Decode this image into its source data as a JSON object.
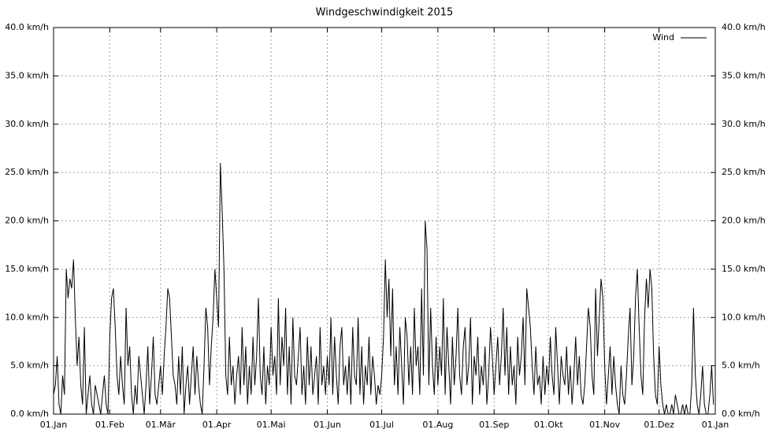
{
  "chart_data": {
    "type": "line",
    "title": "Windgeschwindigkeit 2015",
    "x": [
      0,
      1,
      2,
      3,
      4,
      5,
      6,
      7,
      8,
      9,
      10,
      11,
      12,
      13,
      14,
      15,
      16,
      17,
      18,
      19,
      20,
      21,
      22,
      23,
      24,
      25,
      26,
      27,
      28,
      29,
      30,
      31,
      32,
      33,
      34,
      35,
      36,
      37,
      38,
      39,
      40,
      41,
      42,
      43,
      44,
      45,
      46,
      47,
      48,
      49,
      50,
      51,
      52,
      53,
      54,
      55,
      56,
      57,
      58,
      59,
      60,
      61,
      62,
      63,
      64,
      65,
      66,
      67,
      68,
      69,
      70,
      71,
      72,
      73,
      74,
      75,
      76,
      77,
      78,
      79,
      80,
      81,
      82,
      83,
      84,
      85,
      86,
      87,
      88,
      89,
      90,
      91,
      92,
      93,
      94,
      95,
      96,
      97,
      98,
      99,
      100,
      101,
      102,
      103,
      104,
      105,
      106,
      107,
      108,
      109,
      110,
      111,
      112,
      113,
      114,
      115,
      116,
      117,
      118,
      119,
      120,
      121,
      122,
      123,
      124,
      125,
      126,
      127,
      128,
      129,
      130,
      131,
      132,
      133,
      134,
      135,
      136,
      137,
      138,
      139,
      140,
      141,
      142,
      143,
      144,
      145,
      146,
      147,
      148,
      149,
      150,
      151,
      152,
      153,
      154,
      155,
      156,
      157,
      158,
      159,
      160,
      161,
      162,
      163,
      164,
      165,
      166,
      167,
      168,
      169,
      170,
      171,
      172,
      173,
      174,
      175,
      176,
      177,
      178,
      179,
      180,
      181,
      182,
      183,
      184,
      185,
      186,
      187,
      188,
      189,
      190,
      191,
      192,
      193,
      194,
      195,
      196,
      197,
      198,
      199,
      200,
      201,
      202,
      203,
      204,
      205,
      206,
      207,
      208,
      209,
      210,
      211,
      212,
      213,
      214,
      215,
      216,
      217,
      218,
      219,
      220,
      221,
      222,
      223,
      224,
      225,
      226,
      227,
      228,
      229,
      230,
      231,
      232,
      233,
      234,
      235,
      236,
      237,
      238,
      239,
      240,
      241,
      242,
      243,
      244,
      245,
      246,
      247,
      248,
      249,
      250,
      251,
      252,
      253,
      254,
      255,
      256,
      257,
      258,
      259,
      260,
      261,
      262,
      263,
      264,
      265,
      266,
      267,
      268,
      269,
      270,
      271,
      272,
      273,
      274,
      275,
      276,
      277,
      278,
      279,
      280,
      281,
      282,
      283,
      284,
      285,
      286,
      287,
      288,
      289,
      290,
      291,
      292,
      293,
      294,
      295,
      296,
      297,
      298,
      299,
      300,
      301,
      302,
      303,
      304,
      305,
      306,
      307,
      308,
      309,
      310,
      311,
      312,
      313,
      314,
      315,
      316,
      317,
      318,
      319,
      320,
      321,
      322,
      323,
      324,
      325,
      326,
      327,
      328,
      329,
      330,
      331,
      332,
      333,
      334,
      335,
      336,
      337,
      338,
      339,
      340,
      341,
      342,
      343,
      344,
      345,
      346,
      347,
      348,
      349,
      350,
      351,
      352,
      353,
      354,
      355,
      356,
      357,
      358,
      359,
      360,
      361,
      362,
      363,
      364
    ],
    "series": [
      {
        "name": "Wind",
        "color": "#000000",
        "values": [
          2,
          3,
          6,
          1,
          0,
          4,
          2,
          15,
          12,
          14,
          13,
          16,
          10,
          5,
          8,
          3,
          1,
          9,
          0,
          2,
          4,
          1,
          0,
          3,
          2,
          1,
          0,
          2,
          4,
          1,
          0,
          8,
          12,
          13,
          9,
          4,
          2,
          6,
          3,
          1,
          11,
          5,
          7,
          2,
          0,
          3,
          1,
          6,
          4,
          2,
          0,
          3,
          7,
          1,
          4,
          8,
          2,
          1,
          3,
          5,
          2,
          6,
          9,
          13,
          12,
          8,
          4,
          3,
          1,
          6,
          2,
          7,
          0,
          3,
          5,
          1,
          4,
          7,
          2,
          6,
          3,
          1,
          0,
          5,
          11,
          9,
          3,
          7,
          10,
          15,
          12,
          9,
          26,
          21,
          15,
          4,
          2,
          8,
          3,
          5,
          1,
          4,
          6,
          2,
          9,
          3,
          7,
          1,
          5,
          2,
          8,
          3,
          6,
          12,
          4,
          2,
          7,
          1,
          5,
          3,
          9,
          4,
          6,
          2,
          12,
          3,
          8,
          5,
          11,
          2,
          7,
          1,
          10,
          4,
          3,
          6,
          9,
          2,
          5,
          1,
          8,
          3,
          7,
          2,
          4,
          6,
          1,
          9,
          3,
          5,
          2,
          6,
          3,
          10,
          2,
          8,
          4,
          1,
          7,
          9,
          3,
          5,
          2,
          6,
          1,
          9,
          4,
          3,
          10,
          2,
          7,
          1,
          5,
          3,
          8,
          2,
          6,
          4,
          1,
          3,
          2,
          4,
          8,
          16,
          10,
          14,
          6,
          13,
          3,
          7,
          2,
          9,
          5,
          1,
          10,
          8,
          3,
          7,
          2,
          11,
          5,
          7,
          2,
          13,
          4,
          20,
          17,
          3,
          11,
          5,
          2,
          8,
          3,
          7,
          4,
          12,
          2,
          9,
          5,
          1,
          8,
          3,
          6,
          11,
          4,
          2,
          7,
          9,
          3,
          5,
          10,
          1,
          6,
          4,
          8,
          2,
          5,
          3,
          7,
          1,
          4,
          9,
          6,
          2,
          5,
          8,
          3,
          6,
          11,
          4,
          9,
          2,
          7,
          3,
          5,
          1,
          8,
          4,
          6,
          10,
          3,
          13,
          11,
          9,
          5,
          2,
          7,
          3,
          4,
          1,
          6,
          2,
          5,
          3,
          8,
          4,
          2,
          9,
          5,
          1,
          6,
          4,
          3,
          7,
          2,
          5,
          1,
          4,
          8,
          3,
          6,
          2,
          1,
          3,
          7,
          11,
          9,
          4,
          2,
          13,
          6,
          10,
          14,
          12,
          5,
          1,
          4,
          7,
          2,
          6,
          3,
          1,
          0,
          5,
          2,
          1,
          4,
          8,
          11,
          3,
          6,
          12,
          15,
          9,
          4,
          2,
          10,
          14,
          11,
          15,
          13,
          6,
          2,
          1,
          7,
          3,
          1,
          0,
          1,
          0,
          0,
          1,
          0,
          2,
          1,
          0,
          0,
          1,
          0,
          1,
          0,
          0,
          3,
          11,
          4,
          1,
          0,
          2,
          5,
          1,
          0,
          0,
          2,
          5,
          1
        ]
      }
    ],
    "xlim": [
      0,
      365
    ],
    "xticks": [
      {
        "value": 0,
        "label": "01.Jan"
      },
      {
        "value": 31,
        "label": "01.Feb"
      },
      {
        "value": 59,
        "label": "01.Mär"
      },
      {
        "value": 90,
        "label": "01.Apr"
      },
      {
        "value": 120,
        "label": "01.Mai"
      },
      {
        "value": 151,
        "label": "01.Jun"
      },
      {
        "value": 181,
        "label": "01.Jul"
      },
      {
        "value": 212,
        "label": "01.Aug"
      },
      {
        "value": 243,
        "label": "01.Sep"
      },
      {
        "value": 273,
        "label": "01.Okt"
      },
      {
        "value": 304,
        "label": "01.Nov"
      },
      {
        "value": 334,
        "label": "01.Dez"
      },
      {
        "value": 365,
        "label": "01.Jan"
      }
    ],
    "ylim": [
      0,
      40
    ],
    "yticks": [
      {
        "value": 0,
        "label": "0.0 km/h"
      },
      {
        "value": 5,
        "label": "5.0 km/h"
      },
      {
        "value": 10,
        "label": "10.0 km/h"
      },
      {
        "value": 15,
        "label": "15.0 km/h"
      },
      {
        "value": 20,
        "label": "20.0 km/h"
      },
      {
        "value": 25,
        "label": "25.0 km/h"
      },
      {
        "value": 30,
        "label": "30.0 km/h"
      },
      {
        "value": 35,
        "label": "35.0 km/h"
      },
      {
        "value": 40,
        "label": "40.0 km/h"
      }
    ],
    "grid": true,
    "legend": "top-right"
  }
}
